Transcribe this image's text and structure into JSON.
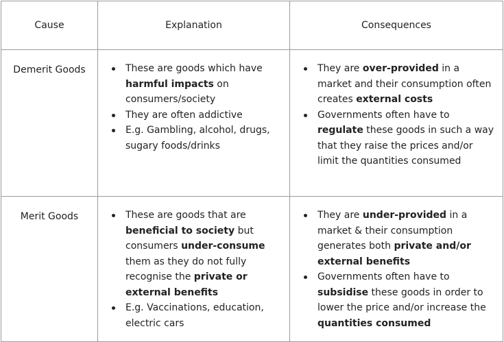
{
  "headers": {
    "cause": "Cause",
    "explanation": "Explanation",
    "consequences": "Consequences"
  },
  "rows": [
    {
      "cause": "Demerit Goods",
      "explanation": [
        [
          "These are goods which have ",
          {
            "b": "harmful impacts"
          },
          " on consumers/society"
        ],
        [
          "They are often addictive"
        ],
        [
          "E.g. Gambling, alcohol, drugs, sugary foods/drinks"
        ]
      ],
      "consequences": [
        [
          "They are ",
          {
            "b": "over-provided"
          },
          " in a market and their consumption often creates ",
          {
            "b": "external costs"
          }
        ],
        [
          "Governments often have to ",
          {
            "b": "regulate"
          },
          " these goods in such a way that they raise the prices and/or limit the quantities consumed"
        ]
      ]
    },
    {
      "cause": "Merit Goods",
      "explanation": [
        [
          "These are goods that are ",
          {
            "b": "beneficial to society"
          },
          " but consumers ",
          {
            "b": "under-consume"
          },
          " them as they do not fully recognise the ",
          {
            "b": "private or external benefits"
          }
        ],
        [
          "E.g. Vaccinations, education, electric cars"
        ]
      ],
      "consequences": [
        [
          "They are ",
          {
            "b": "under-provided"
          },
          " in a market & their consumption generates both ",
          {
            "b": "private and/or external benefits"
          }
        ],
        [
          "Governments often have to ",
          {
            "b": "subsidise"
          },
          " these goods in order to lower the price and/or increase the ",
          {
            "b": "quantities consumed"
          }
        ]
      ]
    }
  ]
}
